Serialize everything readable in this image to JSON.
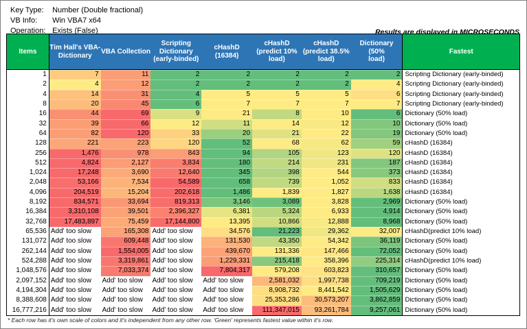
{
  "info": {
    "rows": [
      {
        "label": "Key Type:",
        "value": "Number (Double fractional)"
      },
      {
        "label": "VB Info:",
        "value": "Win VBA7 x64"
      },
      {
        "label": "Operation:",
        "value": "Exists (False)"
      }
    ]
  },
  "note": "Results are displayed in MICROSECONDS",
  "footnote": "* Each row has it's own scale of colors and it's independent from any other row. 'Green' represents fastest value within it's row.",
  "colors": {
    "header_blue": "#2E75B6",
    "header_green": "#00B050",
    "scale_green": "#63BE7B",
    "scale_yellow": "#FFEB84",
    "scale_red": "#F8696B",
    "slow_bg": "#FFFFFF"
  },
  "table": {
    "headers": [
      {
        "label": "Items"
      },
      {
        "label": "Tim Hall's VBA-\nDictionary"
      },
      {
        "label": "VBA Collection"
      },
      {
        "label": "Scripting\nDictionary\n(early-binded)"
      },
      {
        "label": "cHashD (16384)"
      },
      {
        "label": "cHashD\n(predict 10%\nload)"
      },
      {
        "label": "cHashD\n(predict 38.5%\nload)"
      },
      {
        "label": "Dictionary (50%\nload)"
      },
      {
        "label": "Fastest"
      }
    ],
    "slow_text": "Add' too slow",
    "rows": [
      {
        "items": "1",
        "cells": [
          {
            "v": "7",
            "t": 0.62
          },
          {
            "v": "11",
            "t": 0.8
          },
          {
            "v": "2",
            "t": 0
          },
          {
            "v": "2",
            "t": 0
          },
          {
            "v": "2",
            "t": 0
          },
          {
            "v": "2",
            "t": 0
          },
          {
            "v": "2",
            "t": 0
          }
        ],
        "fastest": "Scripting Dictionary (early-binded)"
      },
      {
        "items": "2",
        "cells": [
          {
            "v": "4",
            "t": 0.5
          },
          {
            "v": "12",
            "t": 0.8
          },
          {
            "v": "2",
            "t": 0
          },
          {
            "v": "2",
            "t": 0
          },
          {
            "v": "2",
            "t": 0
          },
          {
            "v": "2",
            "t": 0
          },
          {
            "v": "4",
            "t": 0.5
          }
        ],
        "fastest": "Scripting Dictionary (early-binded)"
      },
      {
        "items": "4",
        "cells": [
          {
            "v": "14",
            "t": 0.66
          },
          {
            "v": "31",
            "t": 0.85
          },
          {
            "v": "4",
            "t": 0
          },
          {
            "v": "5",
            "t": 0.5
          },
          {
            "v": "5",
            "t": 0.5
          },
          {
            "v": "5",
            "t": 0.5
          },
          {
            "v": "6",
            "t": 0.55
          }
        ],
        "fastest": "Scripting Dictionary (early-binded)"
      },
      {
        "items": "8",
        "cells": [
          {
            "v": "20",
            "t": 0.68
          },
          {
            "v": "45",
            "t": 0.88
          },
          {
            "v": "6",
            "t": 0
          },
          {
            "v": "7",
            "t": 0.5
          },
          {
            "v": "7",
            "t": 0.5
          },
          {
            "v": "7",
            "t": 0.5
          },
          {
            "v": "7",
            "t": 0.5
          }
        ],
        "fastest": "Scripting Dictionary (early-binded)"
      },
      {
        "items": "16",
        "cells": [
          {
            "v": "44",
            "t": 0.85
          },
          {
            "v": "69",
            "t": 1
          },
          {
            "v": "9",
            "t": 0.38
          },
          {
            "v": "21",
            "t": 0.5
          },
          {
            "v": "8",
            "t": 0.3
          },
          {
            "v": "10",
            "t": 0.5
          },
          {
            "v": "6",
            "t": 0
          }
        ],
        "fastest": "Dictionary (50% load)"
      },
      {
        "items": "32",
        "cells": [
          {
            "v": "39",
            "t": 0.8
          },
          {
            "v": "66",
            "t": 1
          },
          {
            "v": "12",
            "t": 0.5
          },
          {
            "v": "11",
            "t": 0.35
          },
          {
            "v": "14",
            "t": 0.5
          },
          {
            "v": "12",
            "t": 0.48
          },
          {
            "v": "10",
            "t": 0.1
          }
        ],
        "fastest": "Dictionary (50% load)"
      },
      {
        "items": "64",
        "cells": [
          {
            "v": "82",
            "t": 0.8
          },
          {
            "v": "120",
            "t": 1
          },
          {
            "v": "33",
            "t": 0.6
          },
          {
            "v": "20",
            "t": 0.18
          },
          {
            "v": "21",
            "t": 0.4
          },
          {
            "v": "22",
            "t": 0.5
          },
          {
            "v": "19",
            "t": 0.1
          }
        ],
        "fastest": "Dictionary (50% load)"
      },
      {
        "items": "128",
        "cells": [
          {
            "v": "221",
            "t": 0.76
          },
          {
            "v": "223",
            "t": 0.78
          },
          {
            "v": "120",
            "t": 0.58
          },
          {
            "v": "52",
            "t": 0
          },
          {
            "v": "68",
            "t": 0.5
          },
          {
            "v": "62",
            "t": 0.47
          },
          {
            "v": "59",
            "t": 0.2
          }
        ],
        "fastest": "cHashD (16384)"
      },
      {
        "items": "256",
        "cells": [
          {
            "v": "1,476",
            "t": 1
          },
          {
            "v": "978",
            "t": 0.85
          },
          {
            "v": "843",
            "t": 0.8
          },
          {
            "v": "94",
            "t": 0
          },
          {
            "v": "105",
            "t": 0.25
          },
          {
            "v": "123",
            "t": 0.45
          },
          {
            "v": "120",
            "t": 0.4
          }
        ],
        "fastest": "cHashD (16384)"
      },
      {
        "items": "512",
        "cells": [
          {
            "v": "4,824",
            "t": 1
          },
          {
            "v": "2,127",
            "t": 0.8
          },
          {
            "v": "3,834",
            "t": 0.92
          },
          {
            "v": "180",
            "t": 0
          },
          {
            "v": "214",
            "t": 0.3
          },
          {
            "v": "231",
            "t": 0.45
          },
          {
            "v": "187",
            "t": 0.1
          }
        ],
        "fastest": "cHashD (16384)"
      },
      {
        "items": "1,024",
        "cells": [
          {
            "v": "17,248",
            "t": 1
          },
          {
            "v": "3,690",
            "t": 0.75
          },
          {
            "v": "12,640",
            "t": 0.93
          },
          {
            "v": "345",
            "t": 0
          },
          {
            "v": "398",
            "t": 0.25
          },
          {
            "v": "544",
            "t": 0.5
          },
          {
            "v": "373",
            "t": 0.12
          }
        ],
        "fastest": "cHashD (16384)"
      },
      {
        "items": "2,048",
        "cells": [
          {
            "v": "53,166",
            "t": 0.98
          },
          {
            "v": "7,534",
            "t": 0.72
          },
          {
            "v": "54,589",
            "t": 1
          },
          {
            "v": "658",
            "t": 0
          },
          {
            "v": "739",
            "t": 0.3
          },
          {
            "v": "1,052",
            "t": 0.5
          },
          {
            "v": "833",
            "t": 0.35
          }
        ],
        "fastest": "cHashD (16384)"
      },
      {
        "items": "4,096",
        "cells": [
          {
            "v": "204,519",
            "t": 1
          },
          {
            "v": "15,204",
            "t": 0.7
          },
          {
            "v": "202,618",
            "t": 0.99
          },
          {
            "v": "1,486",
            "t": 0
          },
          {
            "v": "1,839",
            "t": 0.5
          },
          {
            "v": "1,827",
            "t": 0.5
          },
          {
            "v": "1,638",
            "t": 0.28
          }
        ],
        "fastest": "cHashD (16384)"
      },
      {
        "items": "8,192",
        "cells": [
          {
            "v": "834,571",
            "t": 1
          },
          {
            "v": "33,694",
            "t": 0.82
          },
          {
            "v": "819,313",
            "t": 0.99
          },
          {
            "v": "3,146",
            "t": 0.08
          },
          {
            "v": "3,089",
            "t": 0.04
          },
          {
            "v": "3,828",
            "t": 0.5
          },
          {
            "v": "2,969",
            "t": 0
          }
        ],
        "fastest": "Dictionary (50% load)"
      },
      {
        "items": "16,384",
        "cells": [
          {
            "v": "3,310,108",
            "t": 1
          },
          {
            "v": "39,501",
            "t": 0.78
          },
          {
            "v": "2,396,327",
            "t": 0.9
          },
          {
            "v": "6,381",
            "t": 0.42
          },
          {
            "v": "5,324",
            "t": 0.28
          },
          {
            "v": "6,933",
            "t": 0.5
          },
          {
            "v": "4,914",
            "t": 0
          }
        ],
        "fastest": "Dictionary (50% load)"
      },
      {
        "items": "32,768",
        "cells": [
          {
            "v": "17,483,897",
            "t": 1
          },
          {
            "v": "75,459",
            "t": 0.75
          },
          {
            "v": "17,144,800",
            "t": 0.99
          },
          {
            "v": "13,395",
            "t": 0.5
          },
          {
            "v": "10,866",
            "t": 0.35
          },
          {
            "v": "12,888",
            "t": 0.48
          },
          {
            "v": "8,968",
            "t": 0
          }
        ],
        "fastest": "Dictionary (50% load)"
      },
      {
        "items": "65,536",
        "cells": [
          {
            "v": "Add' too slow",
            "t": null
          },
          {
            "v": "165,308",
            "t": 0.78
          },
          {
            "v": "Add' too slow",
            "t": null
          },
          {
            "v": "34,576",
            "t": 0.55
          },
          {
            "v": "21,223",
            "t": 0
          },
          {
            "v": "29,362",
            "t": 0.45
          },
          {
            "v": "32,007",
            "t": 0.5
          }
        ],
        "fastest": "cHashD(predict 10% load)"
      },
      {
        "items": "131,072",
        "cells": [
          {
            "v": "Add' too slow",
            "t": null
          },
          {
            "v": "609,448",
            "t": 0.95
          },
          {
            "v": "Add' too slow",
            "t": null
          },
          {
            "v": "131,530",
            "t": 0.72
          },
          {
            "v": "43,350",
            "t": 0.3
          },
          {
            "v": "54,342",
            "t": 0.5
          },
          {
            "v": "36,119",
            "t": 0.08
          }
        ],
        "fastest": "Dictionary (50% load)"
      },
      {
        "items": "262,144",
        "cells": [
          {
            "v": "Add' too slow",
            "t": null
          },
          {
            "v": "1,554,005",
            "t": 1
          },
          {
            "v": "Add' too slow",
            "t": null
          },
          {
            "v": "439,670",
            "t": 0.78
          },
          {
            "v": "131,336",
            "t": 0.5
          },
          {
            "v": "147,466",
            "t": 0.52
          },
          {
            "v": "72,052",
            "t": 0
          }
        ],
        "fastest": "Dictionary (50% load)"
      },
      {
        "items": "524,288",
        "cells": [
          {
            "v": "Add' too slow",
            "t": null
          },
          {
            "v": "3,319,861",
            "t": 0.95
          },
          {
            "v": "Add' too slow",
            "t": null
          },
          {
            "v": "1,229,331",
            "t": 0.8
          },
          {
            "v": "215,418",
            "t": 0.12
          },
          {
            "v": "358,396",
            "t": 0.5
          },
          {
            "v": "225,314",
            "t": 0.15
          }
        ],
        "fastest": "cHashD(predict 10% load)"
      },
      {
        "items": "1,048,576",
        "cells": [
          {
            "v": "Add' too slow",
            "t": null
          },
          {
            "v": "7,033,374",
            "t": 0.93
          },
          {
            "v": "Add' too slow",
            "t": null
          },
          {
            "v": "7,804,317",
            "t": 1
          },
          {
            "v": "579,208",
            "t": 0.5
          },
          {
            "v": "603,823",
            "t": 0.53
          },
          {
            "v": "310,657",
            "t": 0
          }
        ],
        "fastest": "Dictionary (50% load)"
      },
      {
        "items": "2,097,152",
        "cells": [
          {
            "v": "Add' too slow",
            "t": null
          },
          {
            "v": "Add' too slow",
            "t": null
          },
          {
            "v": "Add' too slow",
            "t": null
          },
          {
            "v": "Add' too slow",
            "t": null
          },
          {
            "v": "2,581,032",
            "t": 0.7
          },
          {
            "v": "1,997,738",
            "t": 0.55
          },
          {
            "v": "709,219",
            "t": 0
          }
        ],
        "fastest": "Dictionary (50% load)"
      },
      {
        "items": "4,194,304",
        "cells": [
          {
            "v": "Add' too slow",
            "t": null
          },
          {
            "v": "Add' too slow",
            "t": null
          },
          {
            "v": "Add' too slow",
            "t": null
          },
          {
            "v": "Add' too slow",
            "t": null
          },
          {
            "v": "8,908,732",
            "t": 0.55
          },
          {
            "v": "8,441,542",
            "t": 0.5
          },
          {
            "v": "1,505,629",
            "t": 0
          }
        ],
        "fastest": "Dictionary (50% load)"
      },
      {
        "items": "8,388,608",
        "cells": [
          {
            "v": "Add' too slow",
            "t": null
          },
          {
            "v": "Add' too slow",
            "t": null
          },
          {
            "v": "Add' too slow",
            "t": null
          },
          {
            "v": "Add' too slow",
            "t": null
          },
          {
            "v": "25,353,286",
            "t": 0.55
          },
          {
            "v": "30,573,207",
            "t": 0.68
          },
          {
            "v": "3,862,859",
            "t": 0
          }
        ],
        "fastest": "Dictionary (50% load)"
      },
      {
        "items": "16,777,216",
        "cells": [
          {
            "v": "Add' too slow",
            "t": null
          },
          {
            "v": "Add' too slow",
            "t": null
          },
          {
            "v": "Add' too slow",
            "t": null
          },
          {
            "v": "Add' too slow",
            "t": null
          },
          {
            "v": "111,347,015",
            "t": 1
          },
          {
            "v": "93,261,784",
            "t": 0.68
          },
          {
            "v": "9,257,061",
            "t": 0
          }
        ],
        "fastest": "Dictionary (50% load)"
      }
    ]
  }
}
